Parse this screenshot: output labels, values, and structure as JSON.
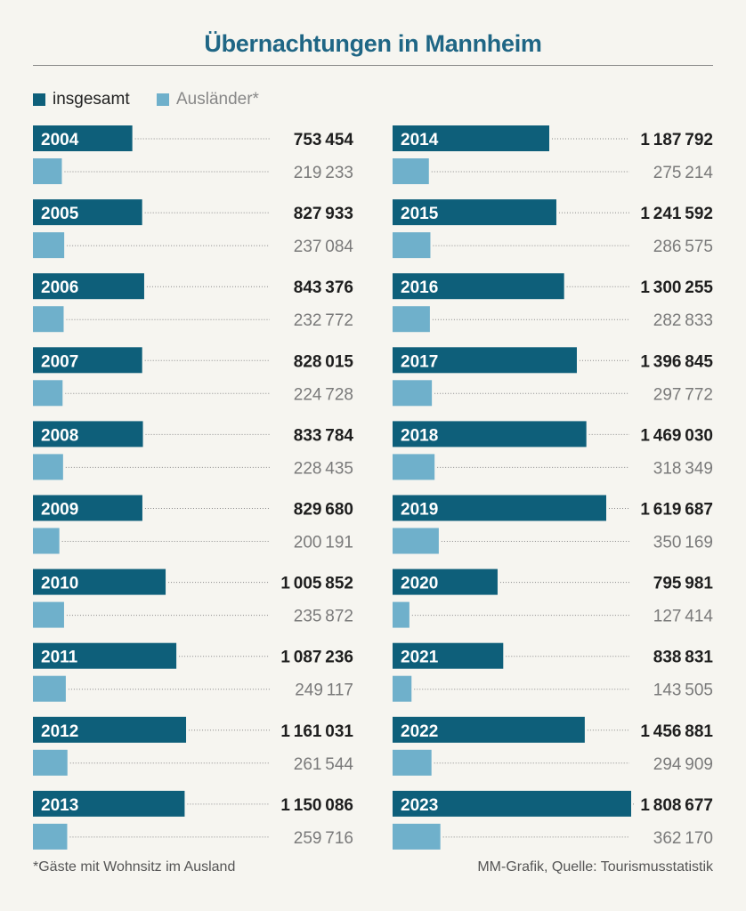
{
  "title": "Übernachtungen in Mannheim",
  "legend": [
    {
      "label": "insgesamt",
      "color": "#0e5f7a"
    },
    {
      "label": "Ausländer*",
      "color": "#6fb0cb"
    }
  ],
  "footnote": "*Gäste mit Wohnsitz im Ausland",
  "source": "MM-Grafik, Quelle: Tourismusstatistik",
  "chart_data": {
    "type": "bar",
    "orientation": "horizontal",
    "title": "Übernachtungen in Mannheim",
    "categories": [
      "2004",
      "2005",
      "2006",
      "2007",
      "2008",
      "2009",
      "2010",
      "2011",
      "2012",
      "2013",
      "2014",
      "2015",
      "2016",
      "2017",
      "2018",
      "2019",
      "2020",
      "2021",
      "2022",
      "2023"
    ],
    "series": [
      {
        "name": "insgesamt",
        "color": "#0e5f7a",
        "values": [
          753454,
          827933,
          843376,
          828015,
          833784,
          829680,
          1005852,
          1087236,
          1161031,
          1150086,
          1187792,
          1241592,
          1300255,
          1396845,
          1469030,
          1619687,
          795981,
          838831,
          1456881,
          1808677
        ],
        "labels": [
          "753454",
          "827933",
          "843376",
          "828015",
          "833784",
          "829680",
          "1005852",
          "1087236",
          "1161031",
          "1150086",
          "1187792",
          "1241592",
          "1300255",
          "1396845",
          "1469030",
          "1619687",
          "795981",
          "838831",
          "1456881",
          "1808677"
        ]
      },
      {
        "name": "Ausländer*",
        "color": "#6fb0cb",
        "values": [
          219233,
          237084,
          232772,
          224728,
          228435,
          200191,
          235872,
          249117,
          261544,
          259716,
          275214,
          286575,
          282833,
          297772,
          318349,
          350169,
          127414,
          143505,
          294909,
          362170
        ],
        "labels": [
          "219233",
          "237084",
          "232772",
          "224728",
          "228435",
          "200191",
          "235872",
          "249117",
          "261544",
          "259716",
          "275214",
          "286575",
          "282833",
          "297772",
          "318349",
          "350169",
          "127414",
          "143505",
          "294909",
          "362170"
        ]
      }
    ]
  }
}
